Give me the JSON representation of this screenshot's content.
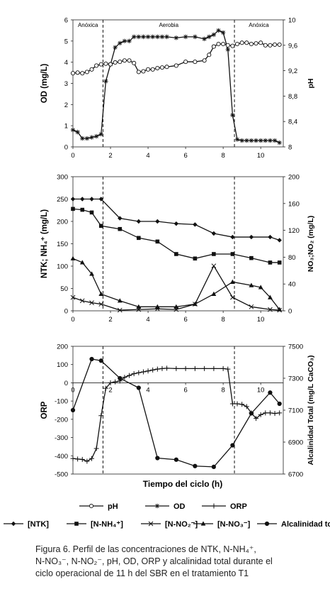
{
  "figure": {
    "xlabel": "Tiempo del ciclo (h)",
    "caption": [
      "Figura 6. Perfil de las concentraciones de NTK, N-NH₄⁺,",
      "N-NO₃⁻, N-NO₂⁻, pH, OD, ORP y alcalinidad total durante el",
      "ciclo operacional de 11 h del SBR en el tratamiento T1"
    ],
    "phases": [
      "Anóxica",
      "Aerobia",
      "Anóxica"
    ],
    "phase_boundaries_h": [
      1.6,
      8.6
    ]
  },
  "legend1": [
    "pH",
    "OD",
    "ORP"
  ],
  "legend2": [
    "[NTK]",
    "[N-NH₄⁺]",
    "[N-NO₂⁻]",
    "[N-NO₃⁻]",
    "Alcalinidad total"
  ],
  "chart_data": [
    {
      "type": "line",
      "panel": "top",
      "x_ticks": [
        "0",
        "2",
        "4",
        "6",
        "8",
        "10"
      ],
      "xlim": [
        0,
        11.2
      ],
      "ylabel": "OD (mg/L)",
      "ylim": [
        0,
        6
      ],
      "y_ticks": [
        "0",
        "1",
        "2",
        "3",
        "4",
        "5",
        "6"
      ],
      "y2label": "pH",
      "y2lim": [
        8,
        10
      ],
      "y2_ticks": [
        "8",
        "8,4",
        "8,8",
        "9,2",
        "9,6",
        "10"
      ],
      "series": [
        {
          "name": "OD",
          "axis": "left",
          "marker": "star",
          "x": [
            0,
            0.25,
            0.5,
            0.75,
            1,
            1.25,
            1.5,
            1.75,
            2,
            2.25,
            2.5,
            2.75,
            3,
            3.25,
            3.5,
            3.75,
            4,
            4.25,
            4.5,
            4.75,
            5,
            5.5,
            6,
            6.5,
            7,
            7.25,
            7.5,
            7.75,
            8,
            8.25,
            8.5,
            8.75,
            9,
            9.25,
            9.5,
            9.75,
            10,
            10.25,
            10.5,
            10.75,
            11
          ],
          "y": [
            0.8,
            0.7,
            0.4,
            0.4,
            0.45,
            0.5,
            0.6,
            3.1,
            3.9,
            4.7,
            4.9,
            5.0,
            5.0,
            5.2,
            5.2,
            5.2,
            5.2,
            5.2,
            5.2,
            5.2,
            5.2,
            5.15,
            5.2,
            5.2,
            5.1,
            5.2,
            5.3,
            5.5,
            5.4,
            4.6,
            1.5,
            0.35,
            0.3,
            0.3,
            0.3,
            0.3,
            0.3,
            0.3,
            0.3,
            0.3,
            0.2
          ]
        },
        {
          "name": "pH",
          "axis": "right",
          "marker": "open-circle",
          "x": [
            0,
            0.25,
            0.5,
            0.75,
            1,
            1.25,
            1.5,
            1.75,
            2,
            2.25,
            2.5,
            2.75,
            3,
            3.25,
            3.5,
            3.75,
            4,
            4.25,
            4.5,
            4.75,
            5,
            5.5,
            6,
            6.5,
            7,
            7.25,
            7.5,
            7.75,
            8,
            8.25,
            8.5,
            8.75,
            9,
            9.25,
            9.5,
            9.75,
            10,
            10.25,
            10.5,
            10.75,
            11
          ],
          "y": [
            9.16,
            9.17,
            9.16,
            9.18,
            9.22,
            9.28,
            9.3,
            9.31,
            9.3,
            9.33,
            9.34,
            9.36,
            9.36,
            9.32,
            9.18,
            9.19,
            9.22,
            9.22,
            9.24,
            9.25,
            9.26,
            9.28,
            9.34,
            9.34,
            9.36,
            9.45,
            9.58,
            9.62,
            9.62,
            9.6,
            9.59,
            9.62,
            9.64,
            9.64,
            9.62,
            9.63,
            9.64,
            9.6,
            9.6,
            9.61,
            9.61
          ]
        }
      ]
    },
    {
      "type": "line",
      "panel": "middle",
      "x_ticks": [
        "0",
        "2",
        "4",
        "6",
        "8",
        "10"
      ],
      "xlim": [
        0,
        11.2
      ],
      "ylabel": "NTK; NH₄⁺ (mg/L)",
      "ylim": [
        0,
        300
      ],
      "y_ticks": [
        "0",
        "50",
        "100",
        "150",
        "200",
        "250",
        "300"
      ],
      "y2label": "NO₃;NO₂ (mg/L)",
      "y2lim": [
        0,
        200
      ],
      "y2_ticks": [
        "0",
        "40",
        "80",
        "120",
        "160",
        "200"
      ],
      "series": [
        {
          "name": "[NTK]",
          "axis": "left",
          "marker": "diamond",
          "x": [
            0,
            0.5,
            1,
            1.5,
            2.5,
            3.5,
            4.5,
            5.5,
            6.5,
            7.5,
            8.5,
            9.5,
            10.5,
            11
          ],
          "y": [
            250,
            250,
            250,
            250,
            207,
            200,
            200,
            195,
            193,
            173,
            165,
            165,
            165,
            158
          ]
        },
        {
          "name": "[N-NH₄⁺]",
          "axis": "left",
          "marker": "square",
          "x": [
            0,
            0.5,
            1,
            1.5,
            2.5,
            3.5,
            4.5,
            5.5,
            6.5,
            7.5,
            8.5,
            9.5,
            10.5,
            11
          ],
          "y": [
            228,
            226,
            220,
            190,
            183,
            163,
            155,
            127,
            117,
            127,
            127,
            118,
            108,
            108
          ]
        },
        {
          "name": "[N-NO₂⁻]",
          "axis": "right",
          "marker": "x",
          "x": [
            0,
            0.5,
            1,
            1.5,
            2.5,
            3.5,
            4.5,
            5.5,
            6.5,
            7.5,
            8.5,
            9.5,
            10.5,
            11
          ],
          "y": [
            20,
            15,
            12,
            10,
            1,
            2,
            3,
            2,
            10,
            67,
            20,
            6,
            2,
            1
          ]
        },
        {
          "name": "[N-NO₃⁻]",
          "axis": "right",
          "marker": "triangle",
          "x": [
            0,
            0.5,
            1,
            1.5,
            2.5,
            3.5,
            4.5,
            5.5,
            6.5,
            7.5,
            8.5,
            9.5,
            10,
            10.5,
            11
          ],
          "y": [
            78,
            72,
            55,
            25,
            15,
            6,
            6,
            6,
            10,
            25,
            43,
            38,
            35,
            20,
            2
          ]
        }
      ]
    },
    {
      "type": "line",
      "panel": "bottom",
      "x_ticks": [
        "0",
        "2",
        "4",
        "6",
        "8",
        "10"
      ],
      "xlim": [
        0,
        11.2
      ],
      "ylabel": "ORP",
      "ylim": [
        -500,
        200
      ],
      "y_ticks": [
        "-500",
        "-400",
        "-300",
        "-200",
        "-100",
        "0",
        "100",
        "200"
      ],
      "y2label": "Alcalinidad Total (mg/L CaCO₃)",
      "y2lim": [
        6700,
        7500
      ],
      "y2_ticks": [
        "6700",
        "6900",
        "7100",
        "7300",
        "7500"
      ],
      "series": [
        {
          "name": "ORP",
          "axis": "left",
          "marker": "plus",
          "x": [
            0,
            0.25,
            0.5,
            0.75,
            1,
            1.25,
            1.5,
            1.75,
            2,
            2.25,
            2.5,
            2.75,
            3,
            3.25,
            3.5,
            3.75,
            4,
            4.25,
            4.5,
            4.75,
            5,
            5.5,
            6,
            6.5,
            7,
            7.5,
            8,
            8.25,
            8.5,
            8.75,
            9,
            9.25,
            9.5,
            9.75,
            10,
            10.25,
            10.5,
            10.75,
            11
          ],
          "y": [
            -415,
            -418,
            -420,
            -430,
            -415,
            -360,
            -180,
            -30,
            0,
            5,
            10,
            30,
            40,
            50,
            55,
            60,
            65,
            70,
            75,
            78,
            80,
            78,
            78,
            78,
            78,
            78,
            78,
            75,
            -115,
            -115,
            -118,
            -130,
            -165,
            -195,
            -175,
            -165,
            -165,
            -168,
            -165
          ]
        },
        {
          "name": "Alcalinidad total",
          "axis": "right",
          "marker": "filled-circle",
          "x": [
            0,
            1,
            1.5,
            2.5,
            3.5,
            4.5,
            5.5,
            6.5,
            7.5,
            8.5,
            9.5,
            10.5,
            11
          ],
          "y": [
            7100,
            7420,
            7410,
            7300,
            7240,
            6800,
            6790,
            6750,
            6745,
            6880,
            7080,
            7210,
            7140
          ]
        }
      ]
    }
  ]
}
